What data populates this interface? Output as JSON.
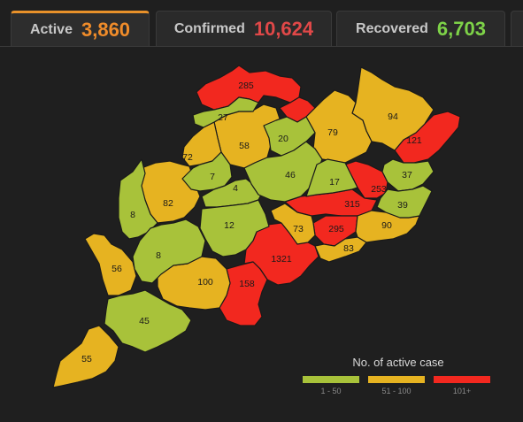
{
  "tabs": [
    {
      "label": "Active",
      "value": "3,860",
      "color": "#f08c2a"
    },
    {
      "label": "Confirmed",
      "value": "10,624",
      "color": "#e04848"
    },
    {
      "label": "Recovered",
      "value": "6,703",
      "color": "#7ed348"
    }
  ],
  "legend": {
    "title": "No. of active case",
    "items": [
      {
        "label": "1 - 50",
        "color": "#a8c23a"
      },
      {
        "label": "51 - 100",
        "color": "#e6b321"
      },
      {
        "label": "101+",
        "color": "#f2281f"
      }
    ]
  },
  "districts": {
    "d285": "285",
    "d27": "27",
    "d94": "94",
    "d79": "79",
    "d58": "58",
    "d20": "20",
    "d121": "121",
    "d72": "72",
    "d7": "7",
    "d46": "46",
    "d17": "17",
    "d253": "253",
    "d37": "37",
    "d4": "4",
    "d8a": "8",
    "d82": "82",
    "d315": "315",
    "d39": "39",
    "d12": "12",
    "d73": "73",
    "d295": "295",
    "d90": "90",
    "d8b": "8",
    "d83": "83",
    "d56": "56",
    "d1321": "1321",
    "d100": "100",
    "d158": "158",
    "d45": "45",
    "d55": "55"
  }
}
